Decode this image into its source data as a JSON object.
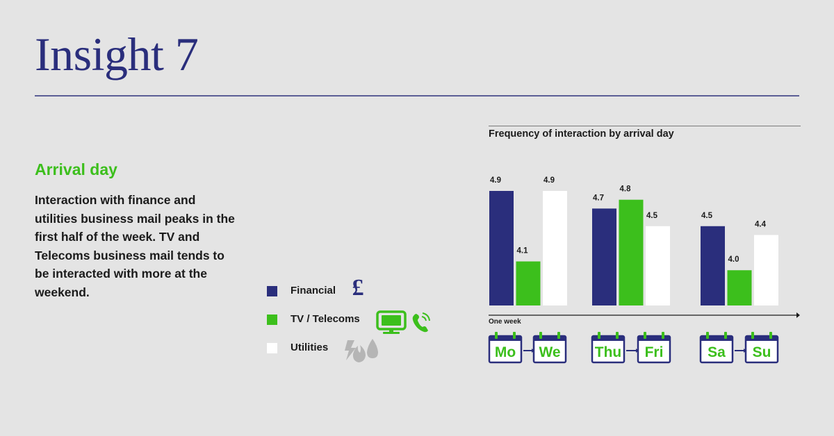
{
  "page": {
    "title": "Insight 7",
    "section_heading": "Arrival day",
    "body_text": "Interaction with finance and utilities business mail peaks in the first half of the week. TV and Telecoms business mail tends to be interacted with more at the weekend."
  },
  "legend": [
    {
      "label": "Financial",
      "color": "#2a2e7c",
      "icon": "pound-icon"
    },
    {
      "label": "TV / Telecoms",
      "color": "#3cbf1c",
      "icon": "tv-phone-icon"
    },
    {
      "label": "Utilities",
      "color": "#ffffff",
      "icon": "utilities-icon"
    }
  ],
  "colors": {
    "navy": "#2a2e7c",
    "green": "#3cbf1c",
    "white": "#ffffff",
    "text": "#1b1b1b",
    "background": "#e4e4e4",
    "icon_grey": "#b5b5b5"
  },
  "chart_data": {
    "type": "bar",
    "title": "Frequency of interaction by arrival day",
    "xlabel": "One week",
    "categories": [
      "Mo–We",
      "Thu–Fri",
      "Sa–Su"
    ],
    "day_groups": [
      {
        "start": "Mo",
        "end": "We"
      },
      {
        "start": "Thu",
        "end": "Fri"
      },
      {
        "start": "Sa",
        "end": "Su"
      }
    ],
    "series": [
      {
        "name": "Financial",
        "color": "#2a2e7c",
        "values": [
          4.9,
          4.7,
          4.5
        ],
        "labels": [
          "4.9",
          "4.7",
          "4.5"
        ]
      },
      {
        "name": "TV / Telecoms",
        "color": "#3cbf1c",
        "values": [
          4.1,
          4.8,
          4.0
        ],
        "labels": [
          "4.1",
          "4.8",
          "4.0"
        ]
      },
      {
        "name": "Utilities",
        "color": "#ffffff",
        "values": [
          4.9,
          4.5,
          4.4
        ],
        "labels": [
          "4.9",
          "4.5",
          "4.4"
        ]
      }
    ],
    "ylim": [
      3.6,
      4.9
    ],
    "grid": false,
    "legend_position": "left"
  }
}
